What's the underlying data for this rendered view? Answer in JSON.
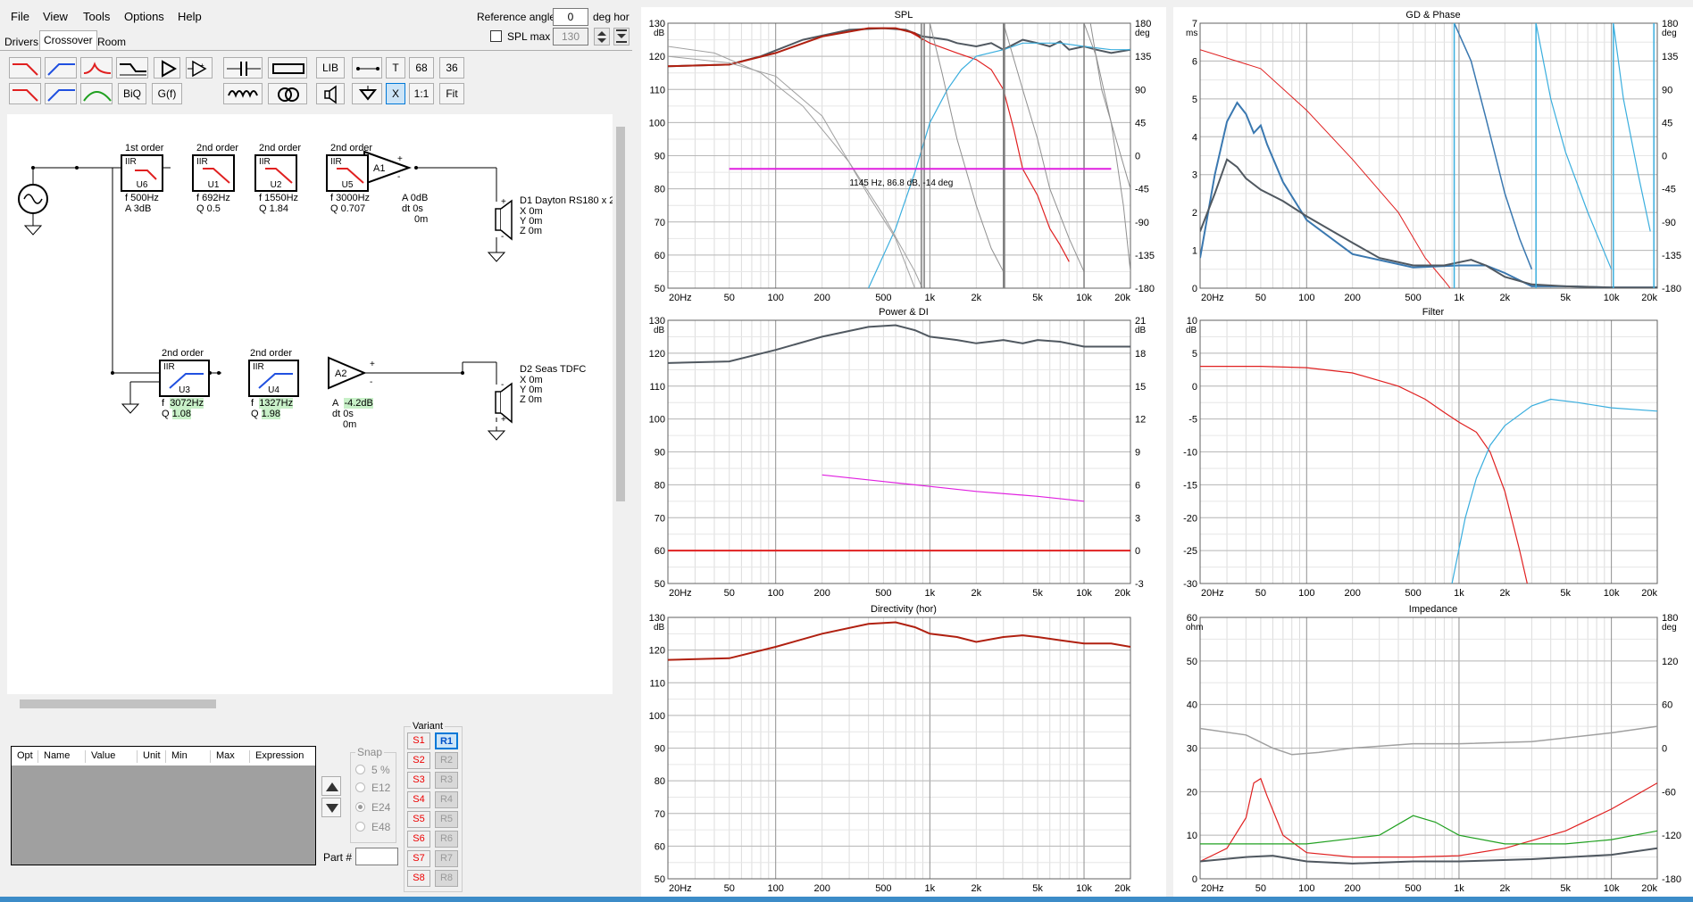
{
  "menu": [
    "File",
    "View",
    "Tools",
    "Options",
    "Help"
  ],
  "reference_angle": {
    "label": "Reference angle",
    "value": "0",
    "unit": "deg hor"
  },
  "spl_max": {
    "label": "SPL max",
    "value": "130"
  },
  "tabs": [
    "Drivers",
    "Crossover",
    "Room"
  ],
  "toolbar": {
    "lib": "LIB",
    "t": "T",
    "n68": "68",
    "n36": "36",
    "biq": "BiQ",
    "gf": "G(f)",
    "x": "X",
    "one": "1:1",
    "fit": "Fit"
  },
  "crossover": {
    "path1": [
      {
        "order": "1st order",
        "type": "IIR",
        "name": "U6",
        "p1": "f  500Hz",
        "p2": "A  3dB"
      },
      {
        "order": "2nd order",
        "type": "IIR",
        "name": "U1",
        "p1": "f  692Hz",
        "p2": "Q  0.5"
      },
      {
        "order": "2nd order",
        "type": "IIR",
        "name": "U2",
        "p1": "f  1550Hz",
        "p2": "Q  1.84"
      },
      {
        "order": "2nd order",
        "type": "IIR",
        "name": "U5",
        "p1": "f  3000Hz",
        "p2": "Q  0.707"
      }
    ],
    "amp1": {
      "name": "A1",
      "p1": "A  0dB",
      "p2": "dt 0s",
      "p3": "0m"
    },
    "driver1": {
      "name": "D1 Dayton RS180 x 2",
      "x": "X  0m",
      "y": "Y  0m",
      "z": "Z  0m"
    },
    "path2": [
      {
        "order": "2nd order",
        "type": "IIR",
        "name": "U3",
        "f_label": "f",
        "f": "3072Hz",
        "q_label": "Q",
        "q": "1.08"
      },
      {
        "order": "2nd order",
        "type": "IIR",
        "name": "U4",
        "f_label": "f",
        "f": "1327Hz",
        "q_label": "Q",
        "q": "1.98"
      }
    ],
    "amp2": {
      "name": "A2",
      "a_label": "A",
      "a": "-4.2dB",
      "p2": "dt 0s",
      "p3": "0m"
    },
    "driver2": {
      "name": "D2 Seas TDFC",
      "x": "X  0m",
      "y": "Y  0m",
      "z": "Z  0m"
    }
  },
  "opt_table": {
    "columns": [
      "Opt",
      "Name",
      "Value",
      "Unit",
      "Min",
      "Max",
      "Expression"
    ]
  },
  "snap": {
    "label": "Snap",
    "options": [
      "5 %",
      "E12",
      "E24",
      "E48"
    ],
    "selected": "E24"
  },
  "part": {
    "label": "Part #"
  },
  "variant": {
    "label": "Variant",
    "s": [
      "S1",
      "S2",
      "S3",
      "S4",
      "S5",
      "S6",
      "S7",
      "S8"
    ],
    "r": [
      "R1",
      "R2",
      "R3",
      "R4",
      "R5",
      "R6",
      "R7",
      "R8"
    ]
  },
  "graphs": {
    "spl": {
      "title": "SPL",
      "yunit": "dB",
      "y2unit": "deg",
      "yticks": [
        "130",
        "120",
        "110",
        "100",
        "90",
        "80",
        "70",
        "60",
        "50"
      ],
      "y2ticks": [
        "180",
        "135",
        "90",
        "45",
        "0",
        "-45",
        "-90",
        "-135",
        "-180"
      ],
      "xticks": [
        "20Hz",
        "50",
        "100",
        "200",
        "500",
        "1k",
        "2k",
        "5k",
        "10k",
        "20k"
      ],
      "cursor": "1145 Hz, 86.8 dB, -14 deg"
    },
    "gd": {
      "title": "GD & Phase",
      "yunit": "ms",
      "y2unit": "deg",
      "yticks": [
        "7",
        "6",
        "5",
        "4",
        "3",
        "2",
        "1",
        "0"
      ],
      "y2ticks": [
        "180",
        "135",
        "90",
        "45",
        "0",
        "-45",
        "-90",
        "-135",
        "-180"
      ],
      "xticks": [
        "20Hz",
        "50",
        "100",
        "200",
        "500",
        "1k",
        "2k",
        "5k",
        "10k",
        "20k"
      ]
    },
    "power": {
      "title": "Power & DI",
      "yunit": "dB",
      "y2unit": "dB",
      "yticks": [
        "130",
        "120",
        "110",
        "100",
        "90",
        "80",
        "70",
        "60",
        "50"
      ],
      "y2ticks": [
        "21",
        "18",
        "15",
        "12",
        "9",
        "6",
        "3",
        "0",
        "-3"
      ],
      "xticks": [
        "20Hz",
        "50",
        "100",
        "200",
        "500",
        "1k",
        "2k",
        "5k",
        "10k",
        "20k"
      ]
    },
    "filter": {
      "title": "Filter",
      "yunit": "dB",
      "yticks": [
        "10",
        "5",
        "0",
        "-5",
        "-10",
        "-15",
        "-20",
        "-25",
        "-30"
      ],
      "xticks": [
        "20Hz",
        "50",
        "100",
        "200",
        "500",
        "1k",
        "2k",
        "5k",
        "10k",
        "20k"
      ]
    },
    "directivity": {
      "title": "Directivity (hor)",
      "yunit": "dB",
      "yticks": [
        "130",
        "120",
        "110",
        "100",
        "90",
        "80",
        "70",
        "60",
        "50"
      ],
      "xticks": [
        "20Hz",
        "50",
        "100",
        "200",
        "500",
        "1k",
        "2k",
        "5k",
        "10k",
        "20k"
      ]
    },
    "impedance": {
      "title": "Impedance",
      "yunit": "ohm",
      "y2unit": "deg",
      "yticks": [
        "60",
        "50",
        "40",
        "30",
        "20",
        "10",
        "0"
      ],
      "y2ticks": [
        "180",
        "120",
        "60",
        "0",
        "-60",
        "-120",
        "-180"
      ],
      "xticks": [
        "20Hz",
        "50",
        "100",
        "200",
        "500",
        "1k",
        "2k",
        "5k",
        "10k",
        "20k"
      ]
    }
  },
  "colors": {
    "red": "#e02020",
    "dkred": "#b02010",
    "blue": "#3aaede",
    "gray": "#505860",
    "ltgray": "#a0a0a0",
    "magenta": "#e020e0",
    "green": "#20a020",
    "steelblue": "#3a78b0"
  }
}
